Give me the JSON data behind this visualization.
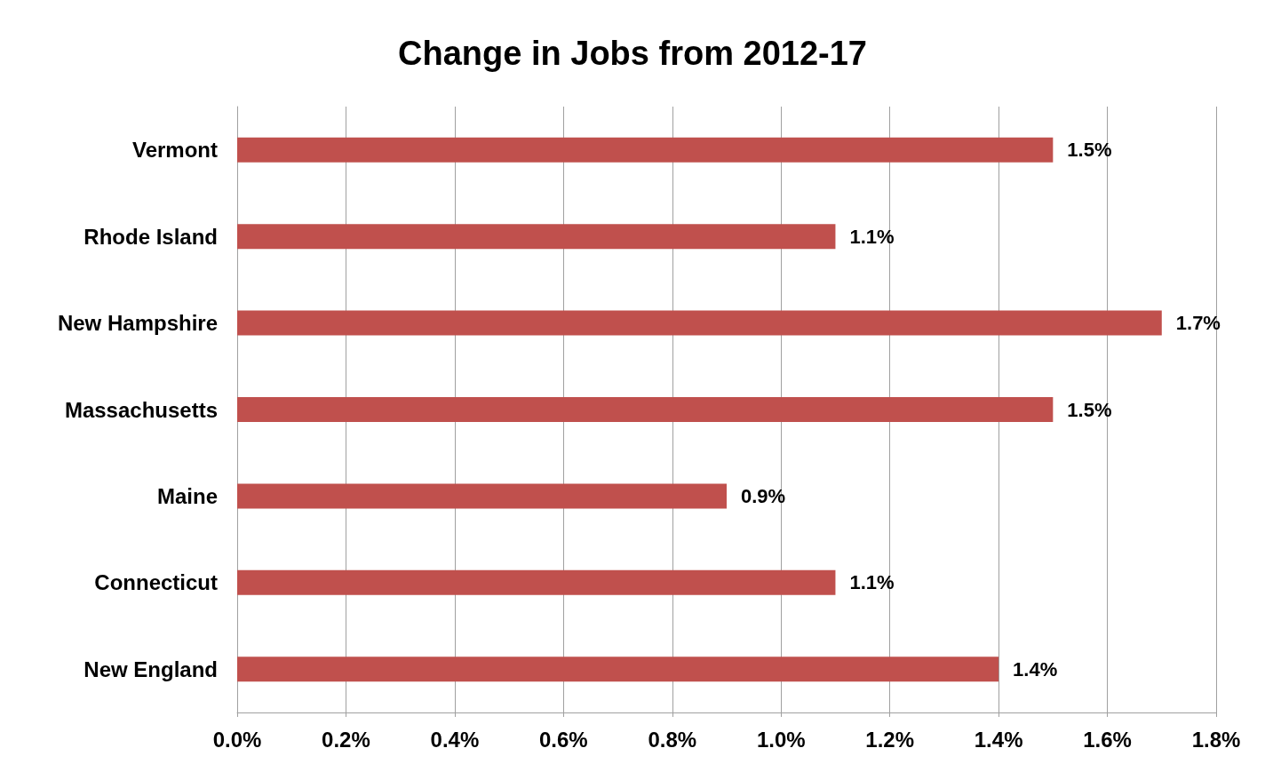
{
  "chart_data": {
    "type": "bar",
    "orientation": "horizontal",
    "title": "Change in Jobs from 2012-17",
    "categories": [
      "Vermont",
      "Rhode Island",
      "New Hampshire",
      "Massachusetts",
      "Maine",
      "Connecticut",
      "New England"
    ],
    "values": [
      1.5,
      1.1,
      1.7,
      1.5,
      0.9,
      1.1,
      1.4
    ],
    "value_labels": [
      "1.5%",
      "1.1%",
      "1.7%",
      "1.5%",
      "0.9%",
      "1.1%",
      "1.4%"
    ],
    "color": "#c0504d",
    "xlim": [
      0,
      1.8
    ],
    "xticks": [
      {
        "value": 0,
        "label": "0.0%"
      },
      {
        "value": 0.2,
        "label": "0.2%"
      },
      {
        "value": 0.4,
        "label": "0.4%"
      },
      {
        "value": 0.6,
        "label": "0.6%"
      },
      {
        "value": 0.8,
        "label": "0.8%"
      },
      {
        "value": 1.0,
        "label": "1.0%"
      },
      {
        "value": 1.2,
        "label": "1.2%"
      },
      {
        "value": 1.4,
        "label": "1.4%"
      },
      {
        "value": 1.6,
        "label": "1.6%"
      },
      {
        "value": 1.8,
        "label": "1.8%"
      }
    ],
    "grid": "x"
  }
}
